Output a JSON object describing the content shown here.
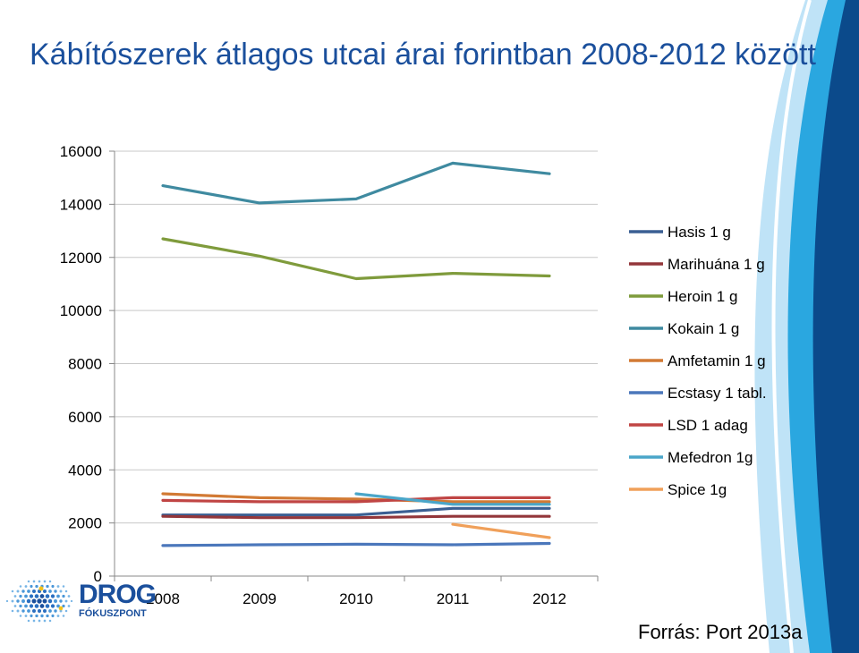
{
  "slide": {
    "title": "Kábítószerek átlagos utcai árai forintban 2008-2012 között",
    "source": "Forrás: Port 2013a",
    "logo_main": "DROG",
    "logo_sub": "FÓKUSZPONT"
  },
  "colors": {
    "title": "#1a4f9c",
    "decor_dark": "#0b4a8b",
    "decor_mid": "#2aa7e0",
    "decor_light": "#bfe3f7"
  },
  "chart_data": {
    "type": "line",
    "title": "",
    "xlabel": "",
    "ylabel": "",
    "categories": [
      "2008",
      "2009",
      "2010",
      "2011",
      "2012"
    ],
    "ylim": [
      0,
      16000
    ],
    "yticks": [
      "0",
      "2000",
      "4000",
      "6000",
      "8000",
      "10000",
      "12000",
      "14000",
      "16000"
    ],
    "grid": true,
    "legend_position": "right",
    "series": [
      {
        "name": "Hasis 1 g",
        "color": "#3a5f93",
        "values": [
          2300,
          2300,
          2300,
          2550,
          2550
        ]
      },
      {
        "name": "Marihuána 1 g",
        "color": "#93363a",
        "values": [
          2250,
          2200,
          2200,
          2250,
          2250
        ]
      },
      {
        "name": "Heroin 1 g",
        "color": "#7f9b3c",
        "values": [
          12700,
          12050,
          11200,
          11400,
          11300
        ]
      },
      {
        "name": "Kokain 1 g",
        "color": "#3f8aa0",
        "values": [
          14700,
          14050,
          14200,
          15550,
          15150
        ]
      },
      {
        "name": "Amfetamin 1 g",
        "color": "#d27a34",
        "values": [
          3100,
          2950,
          2900,
          2800,
          2800
        ]
      },
      {
        "name": "Ecstasy 1 tabl.",
        "color": "#4b77bb",
        "values": [
          1150,
          1180,
          1200,
          1180,
          1230
        ]
      },
      {
        "name": "LSD 1 adag",
        "color": "#c04544",
        "values": [
          2850,
          2800,
          2800,
          2950,
          2950
        ]
      },
      {
        "name": "Mefedron 1g",
        "color": "#4aa6c9",
        "values": [
          null,
          null,
          3100,
          2700,
          2700
        ]
      },
      {
        "name": "Spice 1g",
        "color": "#f0a05a",
        "values": [
          null,
          null,
          null,
          1950,
          1450
        ]
      }
    ]
  }
}
